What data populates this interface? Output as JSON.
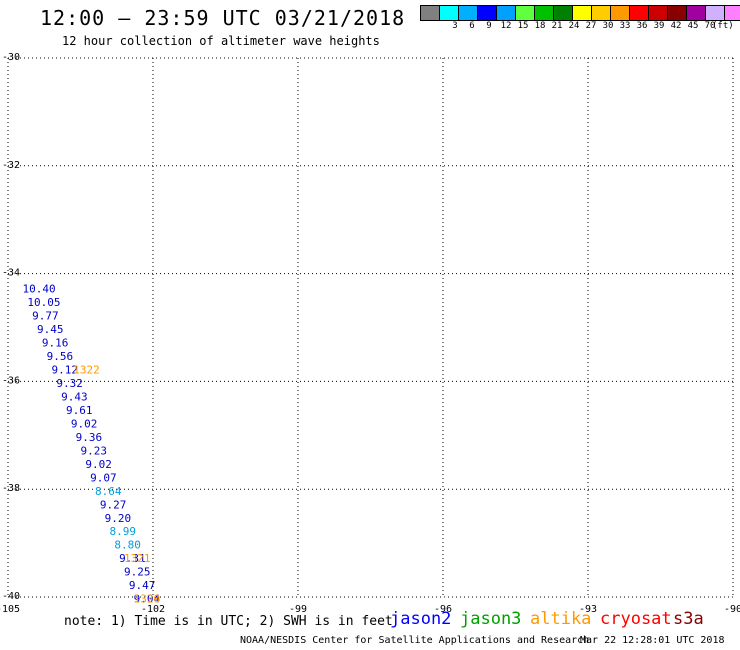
{
  "header": {
    "title": "12:00 – 23:59 UTC 03/21/2018",
    "subtitle": "12 hour collection of altimeter wave heights"
  },
  "scale": {
    "unit": "(ft)",
    "entries": [
      {
        "label": "",
        "color": "#808080"
      },
      {
        "label": "3",
        "color": "#00ffff"
      },
      {
        "label": "6",
        "color": "#00b0ff"
      },
      {
        "label": "9",
        "color": "#0000ff"
      },
      {
        "label": "12",
        "color": "#00a0ff"
      },
      {
        "label": "15",
        "color": "#60ff40"
      },
      {
        "label": "18",
        "color": "#00c000"
      },
      {
        "label": "21",
        "color": "#008000"
      },
      {
        "label": "24",
        "color": "#ffff00"
      },
      {
        "label": "27",
        "color": "#ffcc00"
      },
      {
        "label": "30",
        "color": "#ff9900"
      },
      {
        "label": "33",
        "color": "#ff0000"
      },
      {
        "label": "36",
        "color": "#cc0000"
      },
      {
        "label": "39",
        "color": "#880000"
      },
      {
        "label": "42",
        "color": "#a000a0"
      },
      {
        "label": "45",
        "color": "#d0b0ff"
      },
      {
        "label": "70",
        "color": "#ff80ff"
      },
      {
        "label": "",
        "color": "#000000"
      }
    ]
  },
  "map": {
    "lat_range": [
      -40,
      -30
    ],
    "lon_range": [
      -105,
      -90
    ],
    "lat_labels": [
      "-30",
      "-32",
      "-34",
      "-36",
      "-38",
      "-40"
    ],
    "lon_labels": [
      "-105",
      "-102",
      "-99",
      "-96",
      "-93",
      "-90"
    ],
    "observations": [
      {
        "lat": -34.28,
        "lon": -104.7,
        "value": "10.40",
        "color": "#0000c8"
      },
      {
        "lat": -34.53,
        "lon": -104.6,
        "value": "10.05",
        "color": "#0000c8"
      },
      {
        "lat": -34.78,
        "lon": -104.5,
        "value": "9.77",
        "color": "#0000c8"
      },
      {
        "lat": -35.03,
        "lon": -104.4,
        "value": "9.45",
        "color": "#0000c8"
      },
      {
        "lat": -35.28,
        "lon": -104.3,
        "value": "9.16",
        "color": "#0000c8"
      },
      {
        "lat": -35.53,
        "lon": -104.2,
        "value": "9.56",
        "color": "#0000c8"
      },
      {
        "lat": -35.78,
        "lon": -104.1,
        "value": "9.12",
        "color": "#0000c8"
      },
      {
        "lat": -36.03,
        "lon": -104.0,
        "value": "9.32",
        "color": "#0000c8"
      },
      {
        "lat": -36.28,
        "lon": -103.9,
        "value": "9.43",
        "color": "#0000c8"
      },
      {
        "lat": -36.53,
        "lon": -103.8,
        "value": "9.61",
        "color": "#0000c8"
      },
      {
        "lat": -36.78,
        "lon": -103.7,
        "value": "9.02",
        "color": "#0000c8"
      },
      {
        "lat": -37.03,
        "lon": -103.6,
        "value": "9.36",
        "color": "#0000c8"
      },
      {
        "lat": -37.28,
        "lon": -103.5,
        "value": "9.23",
        "color": "#0000c8"
      },
      {
        "lat": -37.53,
        "lon": -103.4,
        "value": "9.02",
        "color": "#0000c8"
      },
      {
        "lat": -37.78,
        "lon": -103.3,
        "value": "9.07",
        "color": "#0000c8"
      },
      {
        "lat": -38.03,
        "lon": -103.2,
        "value": "8.64",
        "color": "#00a0e0"
      },
      {
        "lat": -38.28,
        "lon": -103.1,
        "value": "9.27",
        "color": "#0000c8"
      },
      {
        "lat": -38.53,
        "lon": -103.0,
        "value": "9.20",
        "color": "#0000c8"
      },
      {
        "lat": -38.78,
        "lon": -102.9,
        "value": "8.99",
        "color": "#00a0e0"
      },
      {
        "lat": -39.03,
        "lon": -102.8,
        "value": "8.80",
        "color": "#00a0e0"
      },
      {
        "lat": -39.28,
        "lon": -102.7,
        "value": "9.31",
        "color": "#0000c8"
      },
      {
        "lat": -39.53,
        "lon": -102.6,
        "value": "9.25",
        "color": "#0000c8"
      },
      {
        "lat": -39.78,
        "lon": -102.5,
        "value": "9.47",
        "color": "#0000c8"
      },
      {
        "lat": -40.03,
        "lon": -102.4,
        "value": "9.04",
        "color": "#0000c8"
      }
    ],
    "time_labels": [
      {
        "lat": -35.78,
        "lon": -103.65,
        "text": "1322",
        "color": "#ff9900"
      },
      {
        "lat": -39.28,
        "lon": -102.6,
        "text": "1321",
        "color": "#ff9900"
      },
      {
        "lat": -40.03,
        "lon": -102.4,
        "text": "1320",
        "color": "#ff9900"
      }
    ]
  },
  "footer": {
    "note": "note: 1) Time is in UTC; 2) SWH is in feet",
    "satellites": [
      {
        "name": "jason2",
        "color": "#0000ff"
      },
      {
        "name": "jason3",
        "color": "#00a000"
      },
      {
        "name": "altika",
        "color": "#ff9900"
      },
      {
        "name": "cryosat",
        "color": "#ff0000"
      },
      {
        "name": "s3a",
        "color": "#880000"
      }
    ],
    "credit": "NOAA/NESDIS Center for Satellite Applications and Research",
    "timestamp": "Mar 22 12:28:01 UTC 2018"
  }
}
